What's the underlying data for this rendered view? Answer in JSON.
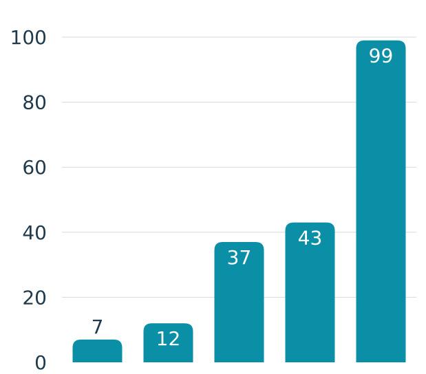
{
  "chart_data": {
    "type": "bar",
    "categories": [
      "",
      "",
      "",
      "",
      ""
    ],
    "values": [
      7,
      12,
      37,
      43,
      99
    ],
    "ylim": [
      0,
      100
    ],
    "yticks": [
      0,
      20,
      40,
      60,
      80,
      100
    ],
    "title": "",
    "xlabel": "",
    "ylabel": "",
    "grid": true,
    "legend": "none",
    "colors": {
      "bar": "#0a8fa6",
      "grid": "#d6d9dc",
      "text": "#1f3a4d",
      "label_inside": "#ffffff"
    }
  }
}
